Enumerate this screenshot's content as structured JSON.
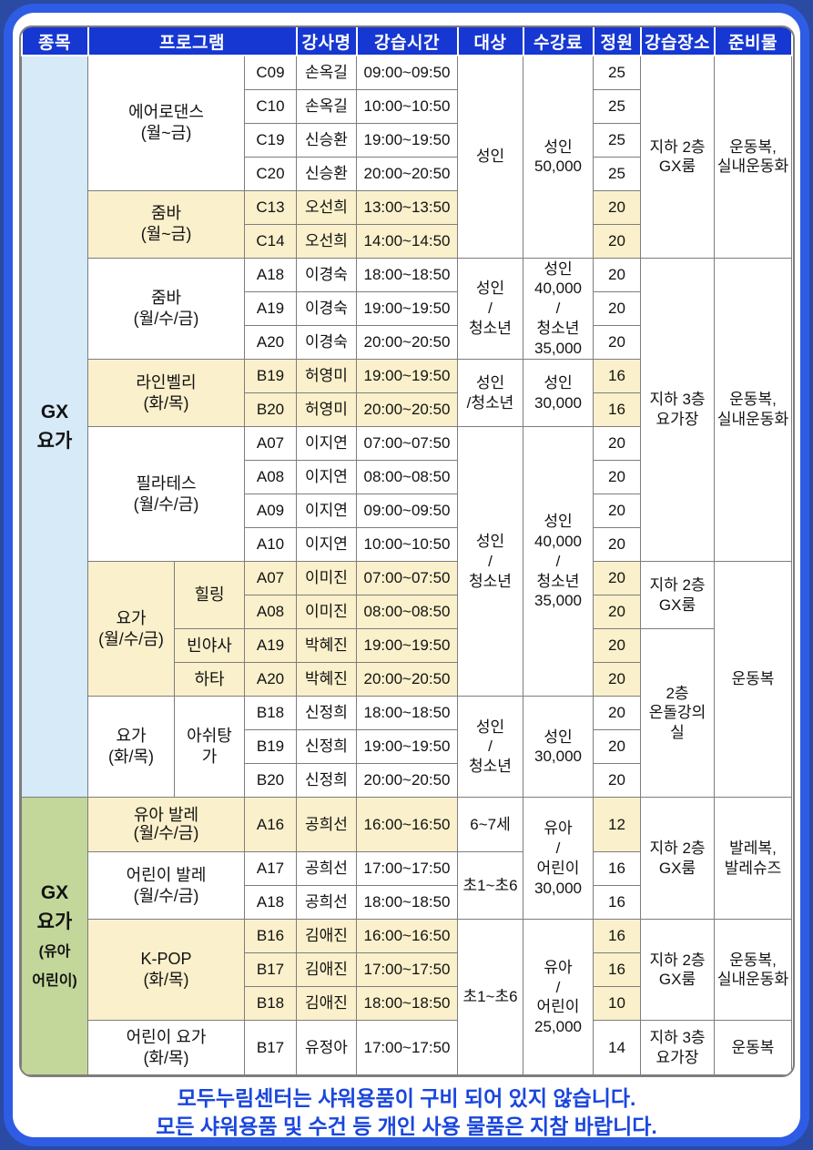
{
  "colors": {
    "frame_bg": "#2b4aa4",
    "frame_border": "#2e5ce4",
    "header_bg": "#1637d2",
    "highlight_yellow": "#faf0cb",
    "category_blue": "#d6eaf7",
    "category_green": "#c3d79b",
    "footer_text": "#1a46dd",
    "grid_border": "#7d7d7d"
  },
  "table": {
    "header": [
      {
        "key": "category",
        "label": "종목",
        "cs": 1
      },
      {
        "key": "program",
        "label": "프로그램",
        "cs": 3
      },
      {
        "key": "instructor",
        "label": "강사명",
        "cs": 1
      },
      {
        "key": "time",
        "label": "강습시간",
        "cs": 1
      },
      {
        "key": "target",
        "label": "대상",
        "cs": 1
      },
      {
        "key": "fee",
        "label": "수강료",
        "cs": 1
      },
      {
        "key": "capacity",
        "label": "정원",
        "cs": 1
      },
      {
        "key": "location",
        "label": "강습장소",
        "cs": 1
      },
      {
        "key": "items",
        "label": "준비물",
        "cs": 1
      }
    ],
    "rows": [
      [
        {
          "n": "category",
          "t": "GX\n요가",
          "rs": 22,
          "bg": "blue"
        },
        {
          "n": "program",
          "t": "에어로댄스\n(월~금)",
          "cs": 2,
          "rs": 4
        },
        {
          "n": "code",
          "t": "C09"
        },
        {
          "n": "instructor",
          "t": "손옥길"
        },
        {
          "n": "time",
          "t": "09:00~09:50"
        },
        {
          "n": "target",
          "t": "성인",
          "rs": 6
        },
        {
          "n": "fee",
          "t": "성인\n50,000",
          "rs": 6
        },
        {
          "n": "capacity",
          "t": "25"
        },
        {
          "n": "location",
          "t": "지하 2층\nGX룸",
          "rs": 6
        },
        {
          "n": "items",
          "t": "운동복,\n실내운동화",
          "rs": 6
        }
      ],
      [
        {
          "n": "code",
          "t": "C10"
        },
        {
          "n": "instructor",
          "t": "손옥길"
        },
        {
          "n": "time",
          "t": "10:00~10:50"
        },
        {
          "n": "capacity",
          "t": "25"
        }
      ],
      [
        {
          "n": "code",
          "t": "C19"
        },
        {
          "n": "instructor",
          "t": "신승환"
        },
        {
          "n": "time",
          "t": "19:00~19:50"
        },
        {
          "n": "capacity",
          "t": "25"
        }
      ],
      [
        {
          "n": "code",
          "t": "C20"
        },
        {
          "n": "instructor",
          "t": "신승환"
        },
        {
          "n": "time",
          "t": "20:00~20:50"
        },
        {
          "n": "capacity",
          "t": "25"
        }
      ],
      [
        {
          "n": "program",
          "t": "줌바\n(월~금)",
          "cs": 2,
          "rs": 2,
          "bg": "y"
        },
        {
          "n": "code",
          "t": "C13",
          "bg": "y"
        },
        {
          "n": "instructor",
          "t": "오선희",
          "bg": "y"
        },
        {
          "n": "time",
          "t": "13:00~13:50",
          "bg": "y"
        },
        {
          "n": "capacity",
          "t": "20",
          "bg": "y"
        }
      ],
      [
        {
          "n": "code",
          "t": "C14",
          "bg": "y"
        },
        {
          "n": "instructor",
          "t": "오선희",
          "bg": "y"
        },
        {
          "n": "time",
          "t": "14:00~14:50",
          "bg": "y"
        },
        {
          "n": "capacity",
          "t": "20",
          "bg": "y"
        }
      ],
      [
        {
          "n": "program",
          "t": "줌바\n(월/수/금)",
          "cs": 2,
          "rs": 3
        },
        {
          "n": "code",
          "t": "A18"
        },
        {
          "n": "instructor",
          "t": "이경숙"
        },
        {
          "n": "time",
          "t": "18:00~18:50"
        },
        {
          "n": "target",
          "t": "성인\n/\n청소년",
          "rs": 3
        },
        {
          "n": "fee",
          "t": "성인\n40,000\n/\n청소년\n35,000",
          "rs": 3
        },
        {
          "n": "capacity",
          "t": "20"
        },
        {
          "n": "location",
          "t": "지하 3층\n요가장",
          "rs": 9
        },
        {
          "n": "items",
          "t": "운동복,\n실내운동화",
          "rs": 9
        }
      ],
      [
        {
          "n": "code",
          "t": "A19"
        },
        {
          "n": "instructor",
          "t": "이경숙"
        },
        {
          "n": "time",
          "t": "19:00~19:50"
        },
        {
          "n": "capacity",
          "t": "20"
        }
      ],
      [
        {
          "n": "code",
          "t": "A20"
        },
        {
          "n": "instructor",
          "t": "이경숙"
        },
        {
          "n": "time",
          "t": "20:00~20:50"
        },
        {
          "n": "capacity",
          "t": "20"
        }
      ],
      [
        {
          "n": "program",
          "t": "라인벨리\n(화/목)",
          "cs": 2,
          "rs": 2,
          "bg": "y"
        },
        {
          "n": "code",
          "t": "B19",
          "bg": "y"
        },
        {
          "n": "instructor",
          "t": "허영미",
          "bg": "y"
        },
        {
          "n": "time",
          "t": "19:00~19:50",
          "bg": "y"
        },
        {
          "n": "target",
          "t": "성인\n/청소년",
          "rs": 2
        },
        {
          "n": "fee",
          "t": "성인\n30,000",
          "rs": 2
        },
        {
          "n": "capacity",
          "t": "16",
          "bg": "y"
        }
      ],
      [
        {
          "n": "code",
          "t": "B20",
          "bg": "y"
        },
        {
          "n": "instructor",
          "t": "허영미",
          "bg": "y"
        },
        {
          "n": "time",
          "t": "20:00~20:50",
          "bg": "y"
        },
        {
          "n": "capacity",
          "t": "16",
          "bg": "y"
        }
      ],
      [
        {
          "n": "program",
          "t": "필라테스\n(월/수/금)",
          "cs": 2,
          "rs": 4
        },
        {
          "n": "code",
          "t": "A07"
        },
        {
          "n": "instructor",
          "t": "이지연"
        },
        {
          "n": "time",
          "t": "07:00~07:50"
        },
        {
          "n": "target",
          "t": "성인\n/\n청소년",
          "rs": 8
        },
        {
          "n": "fee",
          "t": "성인\n40,000\n/\n청소년\n35,000",
          "rs": 8
        },
        {
          "n": "capacity",
          "t": "20"
        }
      ],
      [
        {
          "n": "code",
          "t": "A08"
        },
        {
          "n": "instructor",
          "t": "이지연"
        },
        {
          "n": "time",
          "t": "08:00~08:50"
        },
        {
          "n": "capacity",
          "t": "20"
        }
      ],
      [
        {
          "n": "code",
          "t": "A09"
        },
        {
          "n": "instructor",
          "t": "이지연"
        },
        {
          "n": "time",
          "t": "09:00~09:50"
        },
        {
          "n": "capacity",
          "t": "20"
        }
      ],
      [
        {
          "n": "code",
          "t": "A10"
        },
        {
          "n": "instructor",
          "t": "이지연"
        },
        {
          "n": "time",
          "t": "10:00~10:50"
        },
        {
          "n": "capacity",
          "t": "20"
        }
      ],
      [
        {
          "n": "program",
          "t": "요가\n(월/수/금)",
          "rs": 4,
          "bg": "y"
        },
        {
          "n": "program-sub",
          "t": "힐링",
          "rs": 2,
          "bg": "y"
        },
        {
          "n": "code",
          "t": "A07",
          "bg": "y"
        },
        {
          "n": "instructor",
          "t": "이미진",
          "bg": "y"
        },
        {
          "n": "time",
          "t": "07:00~07:50",
          "bg": "y"
        },
        {
          "n": "capacity",
          "t": "20",
          "bg": "y"
        },
        {
          "n": "location",
          "t": "지하 2층\nGX룸",
          "rs": 2
        },
        {
          "n": "items",
          "t": "운동복",
          "rs": 7
        }
      ],
      [
        {
          "n": "code",
          "t": "A08",
          "bg": "y"
        },
        {
          "n": "instructor",
          "t": "이미진",
          "bg": "y"
        },
        {
          "n": "time",
          "t": "08:00~08:50",
          "bg": "y"
        },
        {
          "n": "capacity",
          "t": "20",
          "bg": "y"
        }
      ],
      [
        {
          "n": "program-sub",
          "t": "빈야사",
          "bg": "y"
        },
        {
          "n": "code",
          "t": "A19",
          "bg": "y"
        },
        {
          "n": "instructor",
          "t": "박혜진",
          "bg": "y"
        },
        {
          "n": "time",
          "t": "19:00~19:50",
          "bg": "y"
        },
        {
          "n": "capacity",
          "t": "20",
          "bg": "y"
        },
        {
          "n": "location",
          "t": "2층\n온돌강의실",
          "rs": 5
        }
      ],
      [
        {
          "n": "program-sub",
          "t": "하타",
          "bg": "y"
        },
        {
          "n": "code",
          "t": "A20",
          "bg": "y"
        },
        {
          "n": "instructor",
          "t": "박혜진",
          "bg": "y"
        },
        {
          "n": "time",
          "t": "20:00~20:50",
          "bg": "y"
        },
        {
          "n": "capacity",
          "t": "20",
          "bg": "y"
        }
      ],
      [
        {
          "n": "program",
          "t": "요가\n(화/목)",
          "rs": 3
        },
        {
          "n": "program-sub",
          "t": "아쉬탕\n가",
          "rs": 3
        },
        {
          "n": "code",
          "t": "B18"
        },
        {
          "n": "instructor",
          "t": "신정희"
        },
        {
          "n": "time",
          "t": "18:00~18:50"
        },
        {
          "n": "target",
          "t": "성인\n/\n청소년",
          "rs": 3
        },
        {
          "n": "fee",
          "t": "성인\n30,000",
          "rs": 3
        },
        {
          "n": "capacity",
          "t": "20"
        }
      ],
      [
        {
          "n": "code",
          "t": "B19"
        },
        {
          "n": "instructor",
          "t": "신정희"
        },
        {
          "n": "time",
          "t": "19:00~19:50"
        },
        {
          "n": "capacity",
          "t": "20"
        }
      ],
      [
        {
          "n": "code",
          "t": "B20"
        },
        {
          "n": "instructor",
          "t": "신정희"
        },
        {
          "n": "time",
          "t": "20:00~20:50"
        },
        {
          "n": "capacity",
          "t": "20"
        }
      ],
      [
        {
          "n": "category",
          "t": "GX\n요가\n(유아\n어린이)",
          "rs": 7,
          "bg": "green"
        },
        {
          "n": "program",
          "t": "유아 발레\n(월/수/금)",
          "cs": 2,
          "bg": "y",
          "tight": true
        },
        {
          "n": "code",
          "t": "A16",
          "bg": "y"
        },
        {
          "n": "instructor",
          "t": "공희선",
          "bg": "y"
        },
        {
          "n": "time",
          "t": "16:00~16:50",
          "bg": "y"
        },
        {
          "n": "target",
          "t": "6~7세"
        },
        {
          "n": "fee",
          "t": "유아\n/\n어린이\n30,000",
          "rs": 3
        },
        {
          "n": "capacity",
          "t": "12",
          "bg": "y"
        },
        {
          "n": "location",
          "t": "지하 2층\nGX룸",
          "rs": 3
        },
        {
          "n": "items",
          "t": "발레복,\n발레슈즈",
          "rs": 3
        }
      ],
      [
        {
          "n": "program",
          "t": "어린이 발레\n(월/수/금)",
          "cs": 2,
          "rs": 2
        },
        {
          "n": "code",
          "t": "A17"
        },
        {
          "n": "instructor",
          "t": "공희선"
        },
        {
          "n": "time",
          "t": "17:00~17:50"
        },
        {
          "n": "target",
          "t": "초1~초6",
          "rs": 2
        },
        {
          "n": "capacity",
          "t": "16"
        }
      ],
      [
        {
          "n": "code",
          "t": "A18"
        },
        {
          "n": "instructor",
          "t": "공희선"
        },
        {
          "n": "time",
          "t": "18:00~18:50"
        },
        {
          "n": "capacity",
          "t": "16"
        }
      ],
      [
        {
          "n": "program",
          "t": "K-POP\n(화/목)",
          "cs": 2,
          "rs": 3,
          "bg": "y"
        },
        {
          "n": "code",
          "t": "B16",
          "bg": "y"
        },
        {
          "n": "instructor",
          "t": "김애진",
          "bg": "y"
        },
        {
          "n": "time",
          "t": "16:00~16:50",
          "bg": "y"
        },
        {
          "n": "target",
          "t": "초1~초6",
          "rs": 4
        },
        {
          "n": "fee",
          "t": "유아\n/\n어린이\n25,000",
          "rs": 4
        },
        {
          "n": "capacity",
          "t": "16",
          "bg": "y"
        },
        {
          "n": "location",
          "t": "지하 2층\nGX룸",
          "rs": 3
        },
        {
          "n": "items",
          "t": "운동복,\n실내운동화",
          "rs": 3
        }
      ],
      [
        {
          "n": "code",
          "t": "B17",
          "bg": "y"
        },
        {
          "n": "instructor",
          "t": "김애진",
          "bg": "y"
        },
        {
          "n": "time",
          "t": "17:00~17:50",
          "bg": "y"
        },
        {
          "n": "capacity",
          "t": "16",
          "bg": "y"
        }
      ],
      [
        {
          "n": "code",
          "t": "B18",
          "bg": "y"
        },
        {
          "n": "instructor",
          "t": "김애진",
          "bg": "y"
        },
        {
          "n": "time",
          "t": "18:00~18:50",
          "bg": "y"
        },
        {
          "n": "capacity",
          "t": "10",
          "bg": "y"
        }
      ],
      [
        {
          "n": "program",
          "t": "어린이 요가\n(화/목)",
          "cs": 2
        },
        {
          "n": "code",
          "t": "B17"
        },
        {
          "n": "instructor",
          "t": "유정아"
        },
        {
          "n": "time",
          "t": "17:00~17:50"
        },
        {
          "n": "capacity",
          "t": "14"
        },
        {
          "n": "location",
          "t": "지하 3층\n요가장"
        },
        {
          "n": "items",
          "t": "운동복"
        }
      ]
    ]
  },
  "footer": {
    "line1": "모두누림센터는 샤워용품이 구비 되어 있지 않습니다.",
    "line2": "모든 샤워용품 및 수건 등 개인 사용 물품은 지참 바랍니다."
  }
}
